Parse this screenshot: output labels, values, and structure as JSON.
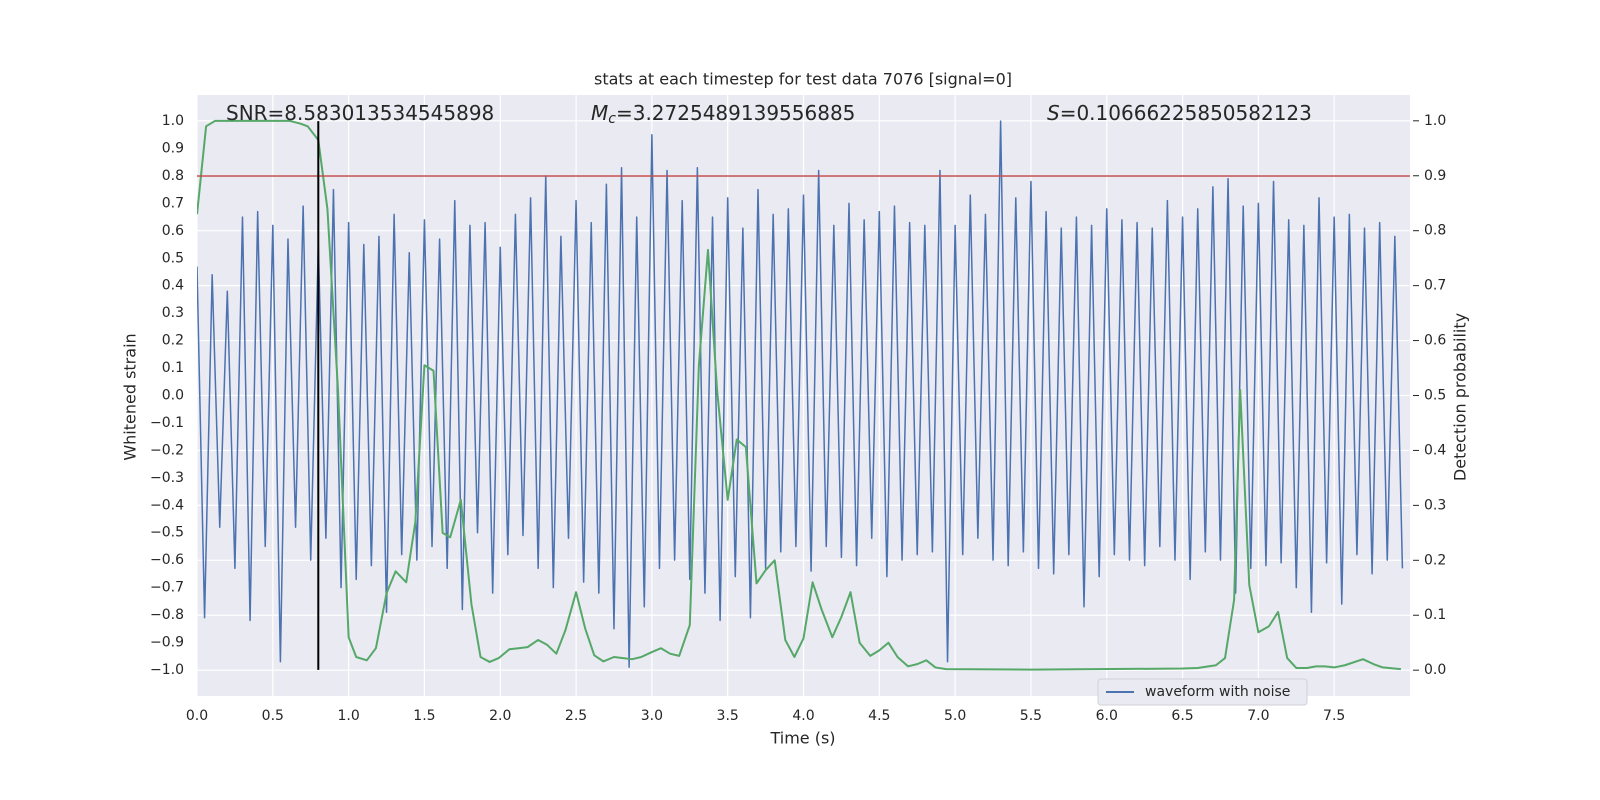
{
  "chart_data": {
    "type": "line",
    "title": "stats at each timestep for test data 7076 [signal=0]",
    "xlabel": "Time (s)",
    "ylabel": "Whitened strain",
    "y2label": "Detection probability",
    "annotations": [
      {
        "text": "SNR=8.583013534545898"
      },
      {
        "symbol": "M",
        "subscript": "c",
        "text": "=3.2725489139556885"
      },
      {
        "symbol": "S",
        "text": "=0.10666225850582123"
      }
    ],
    "xlim": [
      0,
      8
    ],
    "ylim": [
      -1.095,
      1.095
    ],
    "y2lim": [
      -0.047,
      1.047
    ],
    "grid": true,
    "legend_loc": "best",
    "xticks": [
      {
        "value": 0,
        "label": "0.0"
      },
      0.5,
      {
        "value": 1,
        "label": "1.0"
      },
      1.5,
      {
        "value": 2,
        "label": "2.0"
      },
      2.5,
      {
        "value": 3,
        "label": "3.0"
      },
      3.5,
      {
        "value": 4,
        "label": "4.0"
      },
      4.5,
      {
        "value": 5,
        "label": "5.0"
      },
      5.5,
      {
        "value": 6,
        "label": "6.0"
      },
      6.5,
      {
        "value": 7,
        "label": "7.0"
      },
      7.5
    ],
    "yticks": [
      {
        "value": -1,
        "label": "−1.0"
      },
      {
        "value": -0.9,
        "label": "−0.9"
      },
      {
        "value": -0.8,
        "label": "−0.8"
      },
      {
        "value": -0.7,
        "label": "−0.7"
      },
      {
        "value": -0.6,
        "label": "−0.6"
      },
      {
        "value": -0.5,
        "label": "−0.5"
      },
      {
        "value": -0.4,
        "label": "−0.4"
      },
      {
        "value": -0.3,
        "label": "−0.3"
      },
      {
        "value": -0.2,
        "label": "−0.2"
      },
      {
        "value": -0.1,
        "label": "−0.1"
      },
      {
        "value": 0,
        "label": "0.0"
      },
      0.1,
      0.2,
      0.3,
      0.4,
      0.5,
      0.6,
      0.7,
      0.8,
      0.9,
      {
        "value": 1,
        "label": "1.0"
      }
    ],
    "y2ticks": [
      {
        "value": 0,
        "label": "0.0"
      },
      0.1,
      0.2,
      0.3,
      0.4,
      0.5,
      0.6,
      0.7,
      0.8,
      0.9,
      {
        "value": 1,
        "label": "1.0"
      }
    ],
    "hlines": [
      {
        "y": 0.8,
        "color": "#c44e52"
      }
    ],
    "vlines": [
      {
        "x": 0.8,
        "ymin": -1,
        "ymax": 1,
        "color": "#000000"
      }
    ],
    "series": [
      {
        "name": "waveform with noise",
        "color": "#4c72b0",
        "x": [
          0,
          0.05,
          0.1,
          0.15,
          0.2,
          0.25,
          0.3,
          0.35,
          0.4,
          0.45,
          0.5,
          0.55,
          0.6,
          0.65,
          0.7,
          0.75,
          0.8,
          0.85,
          0.9,
          0.95,
          1.0,
          1.05,
          1.1,
          1.15,
          1.2,
          1.25,
          1.3,
          1.35,
          1.4,
          1.45,
          1.5,
          1.55,
          1.6,
          1.65,
          1.7,
          1.75,
          1.8,
          1.85,
          1.9,
          1.95,
          2.0,
          2.05,
          2.1,
          2.15,
          2.2,
          2.25,
          2.3,
          2.35,
          2.4,
          2.45,
          2.5,
          2.55,
          2.6,
          2.65,
          2.7,
          2.75,
          2.8,
          2.85,
          2.9,
          2.95,
          3.0,
          3.05,
          3.1,
          3.15,
          3.2,
          3.25,
          3.3,
          3.35,
          3.4,
          3.45,
          3.5,
          3.55,
          3.6,
          3.65,
          3.7,
          3.75,
          3.8,
          3.85,
          3.9,
          3.95,
          4.0,
          4.05,
          4.1,
          4.15,
          4.2,
          4.25,
          4.3,
          4.35,
          4.4,
          4.45,
          4.5,
          4.55,
          4.6,
          4.65,
          4.7,
          4.75,
          4.8,
          4.85,
          4.9,
          4.95,
          5.0,
          5.05,
          5.1,
          5.15,
          5.2,
          5.25,
          5.3,
          5.35,
          5.4,
          5.45,
          5.5,
          5.55,
          5.6,
          5.65,
          5.7,
          5.75,
          5.8,
          5.85,
          5.9,
          5.95,
          6.0,
          6.05,
          6.1,
          6.15,
          6.2,
          6.25,
          6.3,
          6.35,
          6.4,
          6.45,
          6.5,
          6.55,
          6.6,
          6.65,
          6.7,
          6.75,
          6.8,
          6.85,
          6.9,
          6.95,
          7.0,
          7.05,
          7.1,
          7.15,
          7.2,
          7.25,
          7.3,
          7.35,
          7.4,
          7.45,
          7.5,
          7.55,
          7.6,
          7.65,
          7.7,
          7.75,
          7.8,
          7.85,
          7.9,
          7.95
        ],
        "values": [
          0.47,
          -0.81,
          0.44,
          -0.48,
          0.38,
          -0.63,
          0.65,
          -0.82,
          0.67,
          -0.55,
          0.62,
          -0.97,
          0.57,
          -0.48,
          0.69,
          -0.6,
          0.55,
          -0.52,
          0.75,
          -0.7,
          0.63,
          -0.67,
          0.55,
          -0.62,
          0.58,
          -0.79,
          0.66,
          -0.58,
          0.52,
          -0.6,
          0.64,
          -0.55,
          0.57,
          -0.63,
          0.71,
          -0.78,
          0.62,
          -0.5,
          0.63,
          -0.72,
          0.54,
          -0.58,
          0.66,
          -0.51,
          0.72,
          -0.63,
          0.8,
          -0.7,
          0.58,
          -0.52,
          0.71,
          -0.68,
          0.63,
          -0.72,
          0.77,
          -0.85,
          0.83,
          -0.99,
          0.65,
          -0.77,
          0.95,
          -0.63,
          0.82,
          -0.6,
          0.71,
          -0.67,
          0.83,
          -0.72,
          0.65,
          -0.82,
          0.72,
          -0.66,
          0.61,
          -0.81,
          0.75,
          -0.63,
          0.66,
          -0.57,
          0.68,
          -0.55,
          0.73,
          -0.64,
          0.82,
          -0.55,
          0.62,
          -0.59,
          0.7,
          -0.62,
          0.64,
          -0.52,
          0.67,
          -0.66,
          0.69,
          -0.6,
          0.63,
          -0.58,
          0.62,
          -0.57,
          0.82,
          -0.97,
          0.62,
          -0.58,
          0.73,
          -0.52,
          0.66,
          -0.6,
          1.0,
          -0.62,
          0.72,
          -0.57,
          0.78,
          -0.63,
          0.67,
          -0.65,
          0.61,
          -0.58,
          0.65,
          -0.77,
          0.62,
          -0.66,
          0.68,
          -0.58,
          0.64,
          -0.6,
          0.63,
          -0.62,
          0.61,
          -0.55,
          0.71,
          -0.6,
          0.65,
          -0.67,
          0.68,
          -0.57,
          0.76,
          -0.6,
          0.79,
          -0.72,
          0.69,
          -0.63,
          0.7,
          -0.62,
          0.78,
          -0.61,
          0.64,
          -0.7,
          0.62,
          -0.79,
          0.72,
          -0.61,
          0.65,
          -0.76,
          0.66,
          -0.58,
          0.61,
          -0.65,
          0.63,
          -0.6,
          0.58,
          -0.63
        ]
      },
      {
        "color": "#55a868",
        "axis": "y2",
        "x": [
          0,
          0.06,
          0.12,
          0.61,
          0.68,
          0.73,
          0.8,
          0.86,
          0.93,
          1.0,
          1.05,
          1.12,
          1.18,
          1.25,
          1.31,
          1.38,
          1.44,
          1.5,
          1.56,
          1.62,
          1.67,
          1.74,
          1.81,
          1.87,
          1.93,
          1.99,
          2.06,
          2.12,
          2.18,
          2.25,
          2.31,
          2.37,
          2.43,
          2.5,
          2.56,
          2.62,
          2.68,
          2.75,
          2.81,
          2.87,
          2.93,
          3.0,
          3.06,
          3.12,
          3.18,
          3.25,
          3.31,
          3.37,
          3.43,
          3.5,
          3.56,
          3.62,
          3.69,
          3.75,
          3.81,
          3.88,
          3.94,
          4.0,
          4.06,
          4.12,
          4.19,
          4.25,
          4.31,
          4.37,
          4.44,
          4.5,
          4.56,
          4.62,
          4.69,
          4.75,
          4.81,
          4.87,
          4.94,
          5.5,
          6.5,
          6.6,
          6.72,
          6.78,
          6.84,
          6.88,
          6.94,
          7.0,
          7.07,
          7.13,
          7.19,
          7.25,
          7.32,
          7.38,
          7.44,
          7.5,
          7.57,
          7.69,
          7.76,
          7.82,
          7.94
        ],
        "values": [
          0.83,
          0.99,
          1.0,
          1.0,
          0.995,
          0.99,
          0.965,
          0.84,
          0.51,
          0.06,
          0.024,
          0.018,
          0.04,
          0.14,
          0.18,
          0.16,
          0.27,
          0.555,
          0.545,
          0.25,
          0.242,
          0.31,
          0.12,
          0.024,
          0.015,
          0.022,
          0.038,
          0.04,
          0.042,
          0.055,
          0.046,
          0.03,
          0.073,
          0.142,
          0.076,
          0.027,
          0.016,
          0.024,
          0.022,
          0.02,
          0.024,
          0.033,
          0.04,
          0.03,
          0.026,
          0.082,
          0.555,
          0.765,
          0.51,
          0.31,
          0.42,
          0.406,
          0.158,
          0.182,
          0.2,
          0.055,
          0.024,
          0.058,
          0.16,
          0.11,
          0.06,
          0.097,
          0.142,
          0.05,
          0.026,
          0.036,
          0.05,
          0.024,
          0.007,
          0.011,
          0.018,
          0.005,
          0.002,
          0.001,
          0.003,
          0.004,
          0.009,
          0.022,
          0.128,
          0.51,
          0.155,
          0.069,
          0.08,
          0.106,
          0.022,
          0.004,
          0.004,
          0.007,
          0.007,
          0.005,
          0.009,
          0.02,
          0.011,
          0.005,
          0.002
        ]
      }
    ]
  }
}
